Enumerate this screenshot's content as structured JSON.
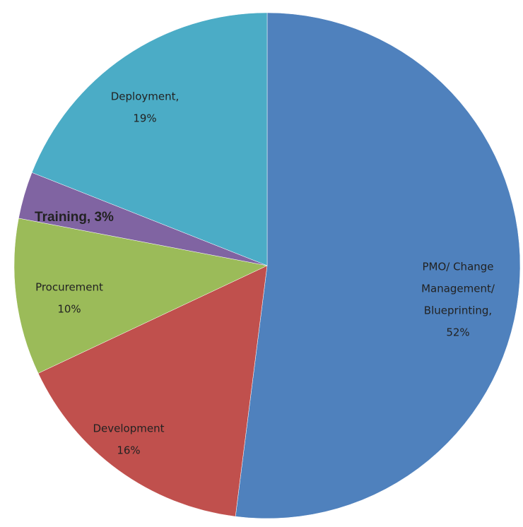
{
  "chart_data": {
    "type": "pie",
    "categories": [
      "PMO/ Change Management/ Blueprinting",
      "Development",
      "Procurement",
      "Training",
      "Deployment"
    ],
    "values": [
      52,
      16,
      10,
      3,
      19
    ],
    "value_labels": [
      [
        "PMO/ Change",
        "Management/",
        "Blueprinting,",
        "52%"
      ],
      [
        "Development",
        "16%"
      ],
      [
        "Procurement",
        "10%"
      ],
      [
        "Training, 3%"
      ],
      [
        "Deployment,",
        "19%"
      ]
    ],
    "colors": [
      "#4f81bd",
      "#c0504d",
      "#9bbb59",
      "#8064a2",
      "#4bacc6"
    ],
    "start_angle": 0,
    "direction": "clockwise"
  }
}
